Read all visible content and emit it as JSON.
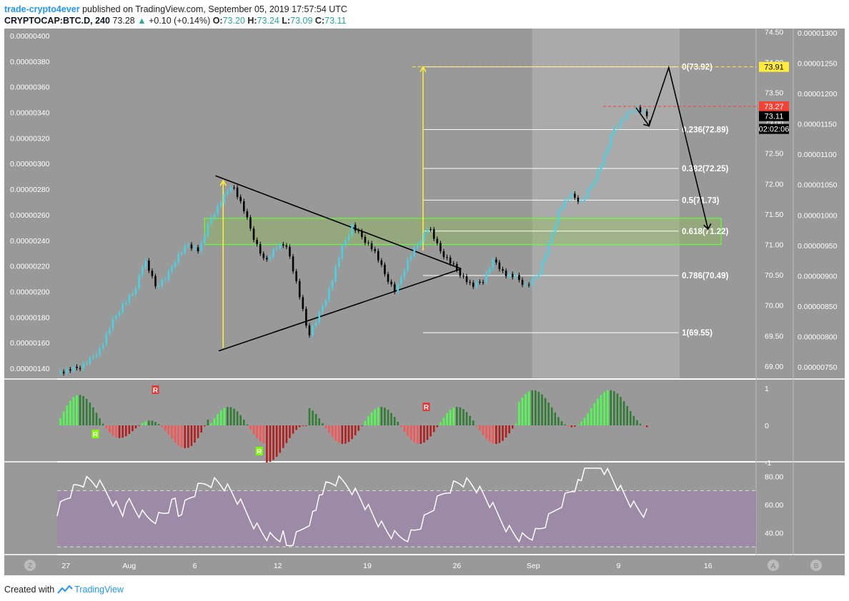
{
  "header": {
    "author": "trade-crypto4ever",
    "published_text": "published on TradingView.com, September 05, 2019 17:57:54 UTC",
    "symbol": "CRYPTOCAP:BTC.D, 240",
    "last": "73.28",
    "change": "+0.10 (+0.14%)",
    "o_label": "O:",
    "o_value": "73.20",
    "h_label": "H:",
    "h_value": "73.24",
    "l_label": "L:",
    "l_value": "73.09",
    "c_label": "C:",
    "c_value": "73.11"
  },
  "footer": {
    "created_with": "Created with",
    "brand": "TradingView"
  },
  "colors": {
    "bull": "#4dd0e1",
    "bear": "#000000",
    "chart_bg": "#999999",
    "future_bg": "#aaaaaa",
    "yellow": "#ffeb3b",
    "green_zone": "#4caf50",
    "red": "#f44336",
    "hist_up": "#2e7d32",
    "hist_up_light": "#4cff4c",
    "hist_down": "#b71c1c",
    "hist_down_light": "#ff5252",
    "rsi_band": "#9c8aa6"
  },
  "chart_data": [
    {
      "type": "candlestick",
      "title": "CRYPTOCAP:BTC.D, 240",
      "x_ticks": [
        "27",
        "Aug",
        "6",
        "12",
        "19",
        "26",
        "Sep",
        "9",
        "16"
      ],
      "right_axis": [
        "74.50",
        "74.00",
        "73.50",
        "73.00",
        "72.50",
        "72.00",
        "71.50",
        "71.00",
        "70.50",
        "70.00",
        "69.50",
        "69.00"
      ],
      "right_range": [
        68.8,
        74.55
      ],
      "left_axis": [
        "0.00000400",
        "0.00000380",
        "0.00000360",
        "0.00000340",
        "0.00000320",
        "0.00000300",
        "0.00000280",
        "0.00000260",
        "0.00000240",
        "0.00000220",
        "0.00000200",
        "0.00000180",
        "0.00000160",
        "0.00000140"
      ],
      "far_right_axis": [
        "0.00001300",
        "0.00001250",
        "0.00001200",
        "0.00001150",
        "0.00001100",
        "0.00001050",
        "0.00001000",
        "0.00000950",
        "0.00000900",
        "0.00000850",
        "0.00000800",
        "0.00000750"
      ],
      "price_path": [
        [
          0,
          68.88
        ],
        [
          2,
          68.97
        ],
        [
          3,
          69.1
        ],
        [
          4,
          69.3
        ],
        [
          5,
          69.7
        ],
        [
          6,
          70.0
        ],
        [
          7,
          70.2
        ],
        [
          8,
          70.75
        ],
        [
          9,
          70.3
        ],
        [
          10,
          70.45
        ],
        [
          11,
          70.8
        ],
        [
          12,
          71.0
        ],
        [
          13,
          70.9
        ],
        [
          14,
          71.4
        ],
        [
          15,
          71.7
        ],
        [
          16,
          72.0
        ],
        [
          17,
          71.6
        ],
        [
          18,
          71.1
        ],
        [
          19,
          70.7
        ],
        [
          20,
          70.95
        ],
        [
          21,
          71.0
        ],
        [
          22,
          70.3
        ],
        [
          23,
          69.5
        ],
        [
          24,
          69.85
        ],
        [
          25,
          70.3
        ],
        [
          26,
          70.9
        ],
        [
          27,
          71.3
        ],
        [
          28,
          71.1
        ],
        [
          29,
          70.9
        ],
        [
          30,
          70.5
        ],
        [
          31,
          70.2
        ],
        [
          32,
          70.7
        ],
        [
          33,
          71.0
        ],
        [
          34,
          71.3
        ],
        [
          35,
          70.9
        ],
        [
          36,
          70.7
        ],
        [
          37,
          70.5
        ],
        [
          38,
          70.3
        ],
        [
          39,
          70.4
        ],
        [
          40,
          70.75
        ],
        [
          41,
          70.5
        ],
        [
          42,
          70.45
        ],
        [
          43,
          70.3
        ],
        [
          44,
          70.5
        ],
        [
          45,
          71.0
        ],
        [
          46,
          71.6
        ],
        [
          47,
          71.8
        ],
        [
          48,
          71.7
        ],
        [
          49,
          72.0
        ],
        [
          50,
          72.4
        ],
        [
          51,
          72.9
        ],
        [
          52,
          73.1
        ],
        [
          53,
          73.25
        ],
        [
          54,
          73.11
        ]
      ],
      "price_marks": [
        "73.91",
        "73.27",
        "73.11",
        "02:02:06"
      ],
      "fib_levels": [
        {
          "label": "0(73.92)",
          "value": 73.92
        },
        {
          "label": "0.236(72.89)",
          "value": 72.89
        },
        {
          "label": "0.382(72.25)",
          "value": 72.25
        },
        {
          "label": "0.5(71.73)",
          "value": 71.73
        },
        {
          "label": "0.618(71.22)",
          "value": 71.22
        },
        {
          "label": "0.786(70.49)",
          "value": 70.49
        },
        {
          "label": "1(69.55)",
          "value": 69.55
        }
      ],
      "projection_path": [
        [
          53,
          73.25
        ],
        [
          54.2,
          72.95
        ],
        [
          56,
          73.91
        ],
        [
          59.6,
          71.25
        ]
      ]
    },
    {
      "type": "bar",
      "name": "momentum",
      "y_ticks": [
        "1",
        "0",
        "-1"
      ],
      "ylim": [
        -1,
        1.2
      ],
      "divergence_labels": [
        "R",
        "R",
        "R",
        "R"
      ]
    },
    {
      "type": "line",
      "name": "rsi",
      "y_ticks": [
        "80.00",
        "60.00",
        "40.00"
      ],
      "ylim": [
        25,
        90
      ],
      "band": [
        30,
        70
      ]
    }
  ]
}
